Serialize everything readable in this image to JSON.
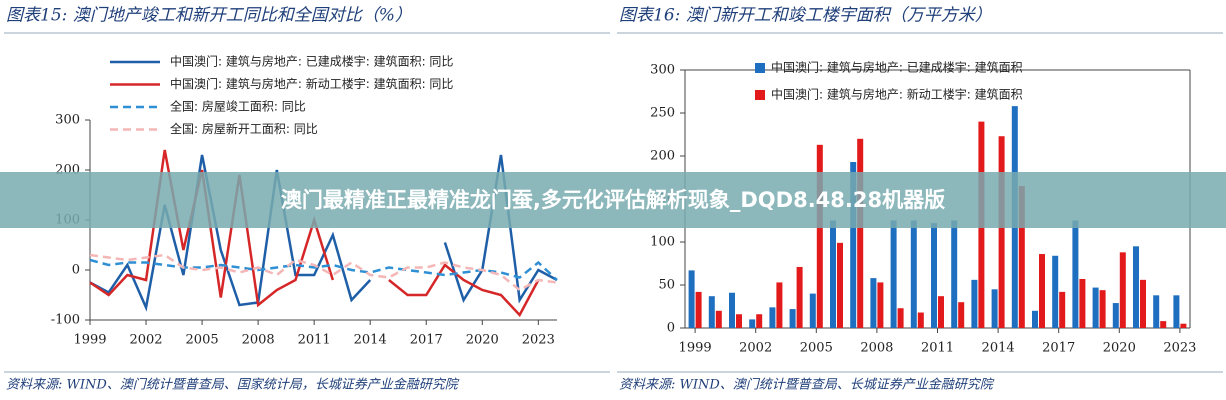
{
  "banner": "澳门最精准正最精准龙门蚕,多元化评估解析现象_DQD8.48.28机器版",
  "chart_data": [
    {
      "type": "line",
      "title": "图表15:  澳门地产竣工和新开工同比和全国对比（%）",
      "source": "资料来源: WIND、澳门统计暨普查局、国家统计局，长城证券产业金融研究院",
      "x": [
        1999,
        2000,
        2001,
        2002,
        2003,
        2004,
        2005,
        2006,
        2007,
        2008,
        2009,
        2010,
        2011,
        2012,
        2013,
        2014,
        2015,
        2016,
        2017,
        2018,
        2019,
        2020,
        2021,
        2022,
        2023,
        2024
      ],
      "xlim": [
        1999,
        2024
      ],
      "xticks": [
        1999,
        2002,
        2005,
        2008,
        2011,
        2014,
        2017,
        2020,
        2023
      ],
      "ylim": [
        -100,
        300
      ],
      "yticks": [
        -100,
        0,
        100,
        200,
        300
      ],
      "series": [
        {
          "name": "中国澳门: 建筑与房地产: 已建成楼宇: 建筑面积: 同比",
          "color": "#1f5fa8",
          "style": "solid",
          "values": [
            -25,
            -45,
            10,
            -75,
            130,
            -10,
            230,
            40,
            -70,
            -65,
            200,
            -10,
            -10,
            70,
            -60,
            -20,
            null,
            null,
            null,
            55,
            -60,
            0,
            230,
            -60,
            0,
            -20
          ]
        },
        {
          "name": "中国澳门: 建筑与房地产: 新动工楼宇: 建筑面积: 同比",
          "color": "#d62728",
          "style": "solid",
          "values": [
            -25,
            -50,
            -10,
            -20,
            240,
            40,
            200,
            -55,
            190,
            -70,
            -40,
            -20,
            100,
            -20,
            null,
            null,
            -20,
            -50,
            -50,
            10,
            -20,
            -40,
            -50,
            -90,
            -20,
            null
          ]
        },
        {
          "name": "全国: 房屋竣工面积: 同比",
          "color": "#2e8fd4",
          "style": "dashed",
          "values": [
            20,
            10,
            15,
            15,
            10,
            5,
            5,
            10,
            5,
            0,
            5,
            10,
            5,
            10,
            0,
            -5,
            5,
            0,
            -5,
            -10,
            -5,
            0,
            -5,
            -15,
            15,
            -20
          ]
        },
        {
          "name": "全国: 房屋新开工面积: 同比",
          "color": "#f4b6b6",
          "style": "dashed",
          "values": [
            30,
            25,
            20,
            25,
            30,
            5,
            0,
            5,
            -5,
            5,
            -10,
            20,
            10,
            -10,
            15,
            -10,
            -15,
            5,
            5,
            15,
            5,
            0,
            -10,
            -40,
            -20,
            -25
          ]
        }
      ]
    },
    {
      "type": "bar",
      "title": "图表16:  澳门新开工和竣工楼宇面积（万平方米）",
      "source": "资料来源: WIND、澳门统计暨普查局、长城证券产业金融研究院",
      "x": [
        1999,
        2000,
        2001,
        2002,
        2003,
        2004,
        2005,
        2006,
        2007,
        2008,
        2009,
        2010,
        2011,
        2012,
        2013,
        2014,
        2015,
        2016,
        2017,
        2018,
        2019,
        2020,
        2021,
        2022,
        2023
      ],
      "xlim": [
        1998.5,
        2023.5
      ],
      "xticks": [
        1999,
        2002,
        2005,
        2008,
        2011,
        2014,
        2017,
        2020,
        2023
      ],
      "ylim": [
        0,
        300
      ],
      "yticks": [
        0,
        50,
        100,
        150,
        200,
        250,
        300
      ],
      "series": [
        {
          "name": "中国澳门: 建筑与房地产: 已建成楼宇: 建筑面积",
          "color": "#1f6fc0",
          "values": [
            67,
            37,
            41,
            10,
            24,
            22,
            40,
            125,
            193,
            58,
            125,
            125,
            122,
            125,
            56,
            45,
            258,
            20,
            84,
            125,
            47,
            29,
            95,
            38,
            38
          ]
        },
        {
          "name": "中国澳门: 建筑与房地产: 新动工楼宇: 建筑面积",
          "color": "#e31a1c",
          "values": [
            42,
            20,
            16,
            16,
            53,
            71,
            213,
            99,
            220,
            53,
            23,
            18,
            37,
            30,
            240,
            223,
            165,
            86,
            42,
            57,
            44,
            88,
            56,
            8,
            5
          ]
        }
      ]
    }
  ]
}
